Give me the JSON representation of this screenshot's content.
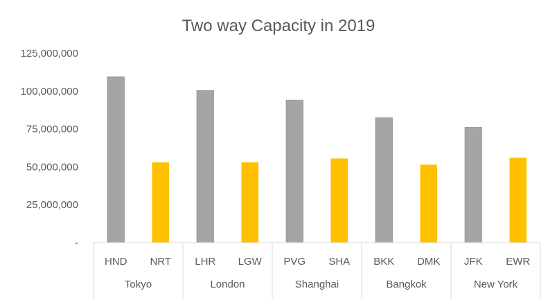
{
  "chart_data": {
    "type": "bar",
    "title": "Two way Capacity in 2019",
    "xlabel": "",
    "ylabel": "",
    "ylim": [
      0,
      125000000
    ],
    "grid": false,
    "legend": "none",
    "y_ticks": [
      {
        "value": 0,
        "label": "-"
      },
      {
        "value": 25000000,
        "label": "25,000,000"
      },
      {
        "value": 50000000,
        "label": "50,000,000"
      },
      {
        "value": 75000000,
        "label": "75,000,000"
      },
      {
        "value": 100000000,
        "label": "100,000,000"
      },
      {
        "value": 125000000,
        "label": "125,000,000"
      }
    ],
    "groups": [
      "Tokyo",
      "London",
      "Shanghai",
      "Bangkok",
      "New York"
    ],
    "categories": [
      "HND",
      "NRT",
      "LHR",
      "LGW",
      "PVG",
      "SHA",
      "BKK",
      "DMK",
      "JFK",
      "EWR"
    ],
    "category_group": [
      0,
      0,
      1,
      1,
      2,
      2,
      3,
      3,
      4,
      4
    ],
    "values": [
      109500000,
      53000000,
      100500000,
      53000000,
      94000000,
      55500000,
      82500000,
      51500000,
      76000000,
      56000000
    ],
    "bar_colors": [
      "#a5a5a5",
      "#ffc000",
      "#a5a5a5",
      "#ffc000",
      "#a5a5a5",
      "#ffc000",
      "#a5a5a5",
      "#ffc000",
      "#a5a5a5",
      "#ffc000"
    ],
    "bar_border_color": "#808080",
    "axis_color": "#d9d9d9"
  }
}
